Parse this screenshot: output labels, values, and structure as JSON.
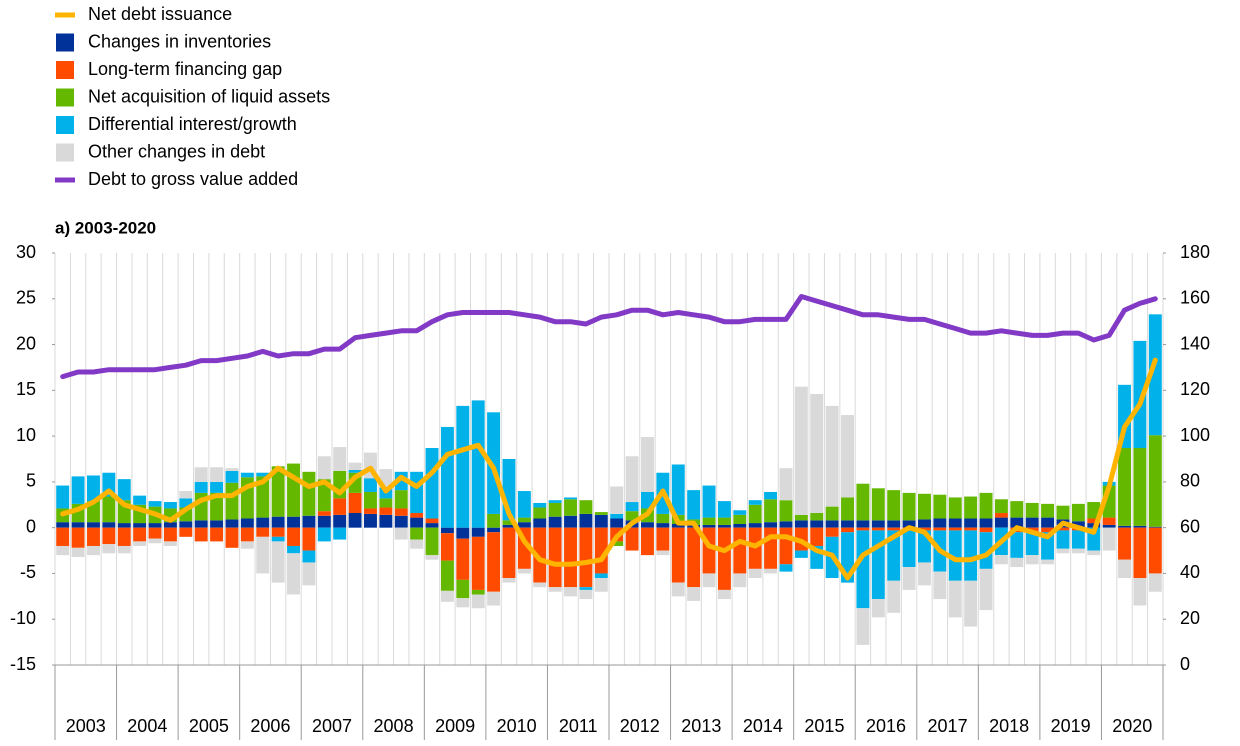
{
  "chart_data": {
    "type": "bar",
    "subtitle": "a) 2003-2020",
    "year_labels": [
      "2003",
      "2004",
      "2005",
      "2006",
      "2007",
      "2008",
      "2009",
      "2010",
      "2011",
      "2012",
      "2013",
      "2014",
      "2015",
      "2016",
      "2017",
      "2018",
      "2019",
      "2020"
    ],
    "ylim": [
      -15,
      30
    ],
    "yticks": [
      -15,
      -10,
      -5,
      0,
      5,
      10,
      15,
      20,
      25,
      30
    ],
    "y2lim": [
      0,
      180
    ],
    "y2ticks": [
      0,
      20,
      40,
      60,
      80,
      100,
      120,
      140,
      160,
      180
    ],
    "grid": true,
    "series": [
      {
        "name": "Net debt issuance",
        "type": "line",
        "color": "#ffb400",
        "values": [
          1.5,
          2.0,
          2.8,
          4.0,
          2.5,
          2.0,
          1.5,
          0.8,
          2.0,
          3.0,
          3.5,
          3.5,
          4.5,
          5.0,
          6.5,
          5.5,
          4.5,
          5.0,
          3.8,
          5.5,
          6.5,
          4.0,
          5.5,
          4.5,
          6.0,
          8.0,
          8.5,
          9.0,
          6.5,
          1.5,
          -1.5,
          -3.5,
          -4.0,
          -4.0,
          -3.8,
          -3.5,
          -1.0,
          0.5,
          1.5,
          4.0,
          0.5,
          0.5,
          -2.0,
          -2.5,
          -1.5,
          -2.0,
          -1.0,
          -1.0,
          -1.5,
          -2.5,
          -3.0,
          -5.5,
          -3.0,
          -2.0,
          -1.0,
          0.0,
          -0.5,
          -2.5,
          -3.5,
          -3.5,
          -3.0,
          -1.5,
          0.0,
          -0.5,
          -1.0,
          0.5,
          0.0,
          -0.5,
          4.5,
          11.0,
          13.5,
          18.3
        ]
      },
      {
        "name": "Changes in inventories",
        "type": "bar",
        "color": "#003299",
        "values": [
          0.6,
          0.6,
          0.6,
          0.6,
          0.5,
          0.5,
          0.5,
          0.6,
          0.7,
          0.8,
          0.8,
          0.9,
          1.0,
          1.1,
          1.2,
          1.2,
          1.3,
          1.3,
          1.4,
          1.6,
          1.5,
          1.4,
          1.3,
          1.1,
          0.5,
          -0.6,
          -1.2,
          -1.0,
          -0.5,
          0.3,
          0.6,
          1.0,
          1.2,
          1.3,
          1.5,
          1.4,
          1.0,
          0.8,
          0.6,
          0.5,
          0.4,
          0.3,
          0.3,
          0.3,
          0.4,
          0.5,
          0.6,
          0.7,
          0.8,
          0.8,
          0.8,
          0.8,
          0.8,
          0.8,
          0.8,
          0.8,
          0.9,
          1.0,
          1.0,
          1.0,
          1.0,
          1.1,
          1.1,
          1.1,
          1.1,
          0.9,
          0.7,
          0.5,
          0.3,
          0.2,
          0.2,
          0.1
        ]
      },
      {
        "name": "Long-term financing gap",
        "type": "bar",
        "color": "#ff4b00",
        "values": [
          -2.0,
          -2.2,
          -2.0,
          -1.8,
          -2.0,
          -1.5,
          -1.2,
          -1.5,
          -1.0,
          -1.5,
          -1.5,
          -2.2,
          -1.5,
          -1.0,
          -1.0,
          -2.0,
          -2.5,
          0.5,
          1.8,
          2.2,
          0.6,
          0.8,
          0.8,
          0.5,
          0.5,
          -3.0,
          -4.5,
          -5.8,
          -6.5,
          -5.5,
          -4.5,
          -6.0,
          -6.5,
          -6.5,
          -6.5,
          -5.0,
          -1.5,
          -2.5,
          -3.0,
          -2.5,
          -6.0,
          -6.5,
          -5.0,
          -6.8,
          -5.0,
          -4.5,
          -4.5,
          -4.0,
          -2.5,
          -2.0,
          -1.0,
          -0.5,
          -0.3,
          -0.3,
          -0.3,
          -0.3,
          -0.3,
          -0.3,
          -0.3,
          -0.3,
          -0.5,
          0.5,
          -0.5,
          -0.5,
          -0.5,
          -0.3,
          -0.3,
          0.5,
          0.8,
          -3.5,
          -5.5,
          -5.0
        ]
      },
      {
        "name": "Net acquisition of liquid assets",
        "type": "bar",
        "color": "#65b800",
        "values": [
          1.5,
          2.0,
          2.3,
          2.8,
          2.5,
          2.0,
          1.8,
          1.5,
          1.5,
          3.0,
          3.0,
          4.0,
          4.5,
          4.5,
          5.5,
          5.8,
          4.8,
          3.5,
          3.0,
          2.2,
          1.8,
          1.0,
          2.0,
          -1.3,
          -3.0,
          -3.3,
          -2.0,
          -0.5,
          1.5,
          0.5,
          0.5,
          1.2,
          1.5,
          1.8,
          1.5,
          0.3,
          -0.5,
          1.0,
          1.5,
          1.0,
          1.0,
          0.6,
          0.8,
          0.8,
          1.0,
          2.0,
          2.5,
          2.3,
          0.6,
          0.8,
          1.5,
          2.5,
          4.0,
          3.5,
          3.3,
          3.0,
          2.8,
          2.6,
          2.3,
          2.4,
          2.8,
          1.5,
          1.8,
          1.6,
          1.5,
          1.5,
          1.9,
          1.8,
          3.5,
          8.5,
          8.5,
          10.0
        ]
      },
      {
        "name": "Differential interest/growth",
        "type": "bar",
        "color": "#00b1ea",
        "values": [
          2.5,
          3.0,
          2.8,
          2.6,
          2.3,
          1.0,
          0.6,
          0.7,
          1.0,
          1.2,
          1.2,
          1.3,
          0.5,
          0.4,
          -0.5,
          -0.8,
          -1.3,
          -1.5,
          -1.3,
          0.3,
          1.5,
          1.2,
          2.0,
          4.5,
          7.7,
          11.0,
          13.3,
          13.9,
          11.1,
          6.7,
          2.9,
          0.5,
          0.3,
          0.2,
          -0.3,
          -0.5,
          0.5,
          1.0,
          1.8,
          4.5,
          5.5,
          3.2,
          3.5,
          1.8,
          0.5,
          0.5,
          0.8,
          -0.8,
          -0.8,
          -2.5,
          -4.5,
          -5.5,
          -8.5,
          -7.5,
          -5.5,
          -4.0,
          -3.5,
          -4.5,
          -5.5,
          -5.5,
          -4.0,
          -3.0,
          -2.8,
          -2.5,
          -3.0,
          -2.0,
          -2.0,
          -2.5,
          0.4,
          6.9,
          11.7,
          13.2
        ]
      },
      {
        "name": "Other changes in debt",
        "type": "bar",
        "color": "#d9d9d9",
        "values": [
          -1.0,
          -1.0,
          -1.0,
          -1.0,
          -0.8,
          -0.5,
          -0.5,
          -0.5,
          0.8,
          1.6,
          1.6,
          0.3,
          -0.8,
          -4.0,
          -4.5,
          -4.5,
          -2.5,
          2.5,
          2.6,
          0.8,
          2.8,
          2.0,
          -1.3,
          -1.0,
          -0.5,
          -1.2,
          -1.0,
          -1.5,
          -1.5,
          -0.5,
          -0.5,
          -0.5,
          -0.5,
          -1.0,
          -1.0,
          -1.5,
          3.0,
          5.0,
          6.0,
          -0.5,
          -1.5,
          -1.5,
          -1.5,
          -1.0,
          -1.5,
          -1.0,
          -0.5,
          3.5,
          14.0,
          13.0,
          11.0,
          9.0,
          -4.0,
          -2.0,
          -3.5,
          -2.5,
          -2.5,
          -3.0,
          -4.0,
          -5.0,
          -4.5,
          -1.0,
          -1.0,
          -1.0,
          -0.5,
          -0.5,
          -0.5,
          -0.5,
          -2.5,
          -2.0,
          -3.0,
          -2.0
        ]
      },
      {
        "name": "Debt to gross value added",
        "type": "line",
        "axis": "y2",
        "color": "#8139c6",
        "values": [
          126,
          128,
          128,
          129,
          129,
          129,
          129,
          130,
          131,
          133,
          133,
          134,
          135,
          137,
          135,
          136,
          136,
          138,
          138,
          143,
          144,
          145,
          146,
          146,
          150,
          153,
          154,
          154,
          154,
          154,
          153,
          152,
          150,
          150,
          149,
          152,
          153,
          155,
          155,
          153,
          154,
          153,
          152,
          150,
          150,
          151,
          151,
          151,
          161,
          159,
          157,
          155,
          153,
          153,
          152,
          151,
          151,
          149,
          147,
          145,
          145,
          146,
          145,
          144,
          144,
          145,
          145,
          142,
          144,
          155,
          158,
          160
        ]
      }
    ]
  }
}
